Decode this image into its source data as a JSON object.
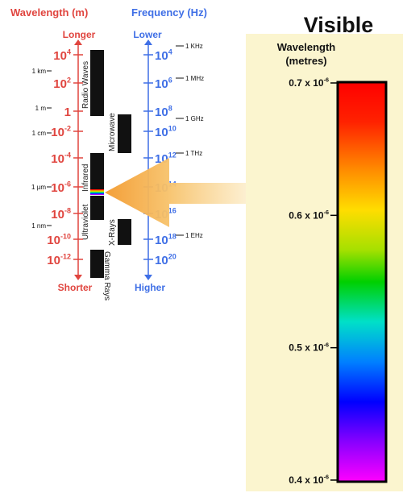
{
  "wavelength_axis": {
    "title": "Wavelength (m)",
    "top_label": "Longer",
    "bottom_label": "Shorter",
    "ticks": [
      {
        "base": "10",
        "exp": "4"
      },
      {
        "base": "10",
        "exp": "2"
      },
      {
        "base": "1",
        "exp": ""
      },
      {
        "base": "10",
        "exp": "-2"
      },
      {
        "base": "10",
        "exp": "-4"
      },
      {
        "base": "10",
        "exp": "-6"
      },
      {
        "base": "10",
        "exp": "-8"
      },
      {
        "base": "10",
        "exp": "-10"
      },
      {
        "base": "10",
        "exp": "-12"
      }
    ],
    "markers": [
      "1 km",
      "1 m",
      "1 cm",
      "1 µm",
      "1 nm"
    ]
  },
  "frequency_axis": {
    "title": "Frequency (Hz)",
    "top_label": "Lower",
    "bottom_label": "Higher",
    "ticks": [
      {
        "base": "10",
        "exp": "4"
      },
      {
        "base": "10",
        "exp": "6"
      },
      {
        "base": "10",
        "exp": "8"
      },
      {
        "base": "10",
        "exp": "10"
      },
      {
        "base": "10",
        "exp": "12"
      },
      {
        "base": "10",
        "exp": "14"
      },
      {
        "base": "10",
        "exp": "16"
      },
      {
        "base": "10",
        "exp": "18"
      },
      {
        "base": "10",
        "exp": "20"
      }
    ],
    "markers": [
      "1 KHz",
      "1 MHz",
      "1 GHz",
      "1 THz",
      "1 EHz"
    ]
  },
  "bands": [
    "Radio Waves",
    "Microwave",
    "Infrared",
    "Ultraviolet",
    "X-Rays",
    "Gamma Rays"
  ],
  "visible": {
    "title": "Visible",
    "subtitle_line1": "Wavelength",
    "subtitle_line2": "(metres)",
    "ticks": [
      {
        "label": "0.7 x 10",
        "exp": "-6",
        "value": 0.7
      },
      {
        "label": "0.6 x 10",
        "exp": "-6",
        "value": 0.6
      },
      {
        "label": "0.5 x 10",
        "exp": "-6",
        "value": 0.5
      },
      {
        "label": "0.4 x 10",
        "exp": "-6",
        "value": 0.4
      }
    ]
  },
  "colors": {
    "wavelength": "#e0453f",
    "frequency": "#3f6fe6",
    "panel": "#fbf5cf",
    "arrow": "#f4a03a"
  }
}
